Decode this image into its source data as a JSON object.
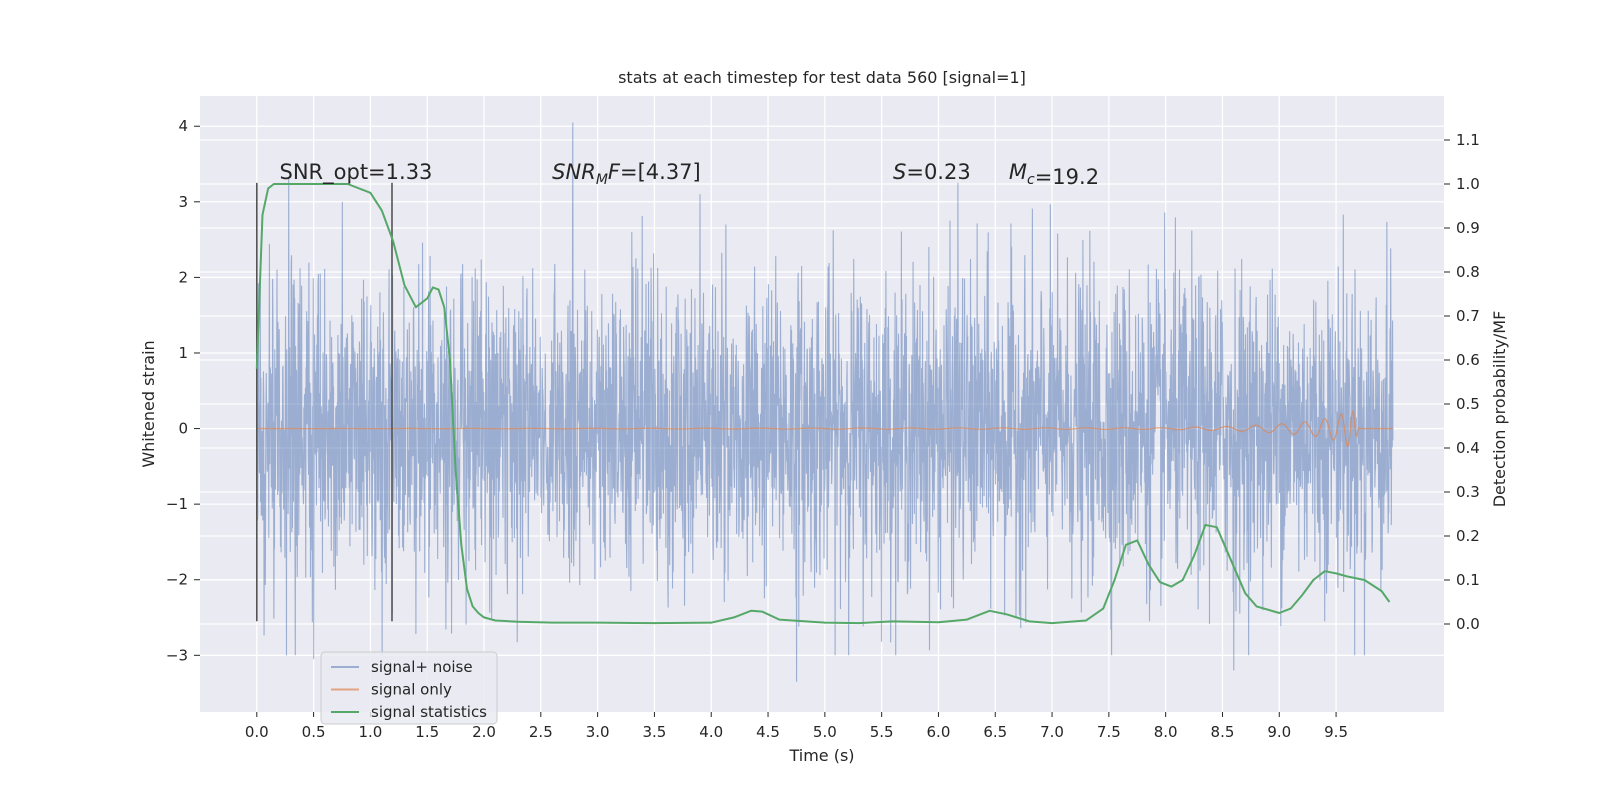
{
  "chart_data": {
    "type": "line",
    "title": "stats at each timestep for test data 560 [signal=1]",
    "xlabel": "Time (s)",
    "ylabel_left": "Whitened strain",
    "ylabel_right": "Detection probability/MF",
    "xlim": [
      -0.5,
      10.45
    ],
    "ylim_left": [
      -3.75,
      4.4
    ],
    "ylim_right": [
      -0.2,
      1.2
    ],
    "x_ticks": [
      "0.0",
      "0.5",
      "1.0",
      "1.5",
      "2.0",
      "2.5",
      "3.0",
      "3.5",
      "4.0",
      "4.5",
      "5.0",
      "5.5",
      "6.0",
      "6.5",
      "7.0",
      "7.5",
      "8.0",
      "8.5",
      "9.0",
      "9.5"
    ],
    "y_ticks_left": [
      "−3",
      "−2",
      "−1",
      "0",
      "1",
      "2",
      "3",
      "4"
    ],
    "y_ticks_right": [
      "0.0",
      "0.1",
      "0.2",
      "0.3",
      "0.4",
      "0.5",
      "0.6",
      "0.7",
      "0.8",
      "0.9",
      "1.0",
      "1.1"
    ],
    "grid": true,
    "legend_position": "lower-left",
    "colors": {
      "background": "#eaeaf2",
      "grid": "#ffffff",
      "noise": "#4c72b0",
      "signal": "#dd8452",
      "stats": "#55a868",
      "marker": "#555555"
    },
    "series": [
      {
        "name": "signal+ noise",
        "axis": "left",
        "x_range": [
          0.0,
          10.0
        ],
        "typical_band": [
          -1.5,
          1.5
        ],
        "extremes_approx": [
          -3.35,
          4.05
        ],
        "notable_peaks": [
          {
            "x": 2.78,
            "y": 4.05
          },
          {
            "x": 0.28,
            "y": 3.3
          },
          {
            "x": 6.17,
            "y": 3.25
          },
          {
            "x": 3.9,
            "y": 3.1
          },
          {
            "x": 4.75,
            "y": -3.35
          },
          {
            "x": 0.5,
            "y": -3.05
          },
          {
            "x": 8.6,
            "y": -3.2
          },
          {
            "x": 9.75,
            "y": -3.0
          }
        ]
      },
      {
        "name": "signal only",
        "axis": "left",
        "x": [
          0.0,
          8.0,
          8.6,
          9.0,
          9.3,
          9.5,
          9.62,
          9.66,
          9.7,
          10.0
        ],
        "envelope": [
          0.0,
          0.01,
          0.03,
          0.06,
          0.1,
          0.16,
          0.25,
          0.22,
          0.0,
          0.0
        ]
      },
      {
        "name": "signal statistics",
        "axis": "right",
        "x": [
          0.0,
          0.05,
          0.1,
          0.15,
          0.2,
          0.3,
          0.5,
          0.8,
          1.0,
          1.1,
          1.2,
          1.3,
          1.4,
          1.5,
          1.55,
          1.6,
          1.65,
          1.7,
          1.75,
          1.8,
          1.85,
          1.9,
          1.95,
          2.0,
          2.1,
          2.3,
          2.6,
          3.0,
          3.5,
          4.0,
          4.2,
          4.35,
          4.45,
          4.6,
          5.0,
          5.3,
          5.6,
          6.0,
          6.25,
          6.45,
          6.6,
          6.8,
          7.0,
          7.3,
          7.45,
          7.55,
          7.65,
          7.75,
          7.85,
          7.95,
          8.05,
          8.15,
          8.25,
          8.35,
          8.45,
          8.6,
          8.7,
          8.8,
          9.0,
          9.1,
          9.2,
          9.3,
          9.4,
          9.5,
          9.6,
          9.75,
          9.9,
          9.97
        ],
        "values": [
          0.58,
          0.93,
          0.99,
          1.0,
          1.0,
          1.0,
          1.0,
          1.0,
          0.98,
          0.94,
          0.87,
          0.77,
          0.72,
          0.74,
          0.765,
          0.76,
          0.72,
          0.6,
          0.35,
          0.18,
          0.08,
          0.04,
          0.025,
          0.015,
          0.008,
          0.005,
          0.003,
          0.003,
          0.002,
          0.003,
          0.015,
          0.03,
          0.028,
          0.01,
          0.003,
          0.002,
          0.006,
          0.004,
          0.01,
          0.03,
          0.022,
          0.006,
          0.002,
          0.008,
          0.035,
          0.1,
          0.18,
          0.19,
          0.135,
          0.095,
          0.085,
          0.1,
          0.155,
          0.225,
          0.22,
          0.13,
          0.07,
          0.04,
          0.025,
          0.035,
          0.065,
          0.1,
          0.12,
          0.115,
          0.108,
          0.1,
          0.075,
          0.05
        ]
      }
    ],
    "vertical_markers": [
      {
        "x": 0.0,
        "y_range": [
          -2.55,
          3.25
        ]
      },
      {
        "x": 1.19,
        "y_range": [
          -2.55,
          3.25
        ]
      }
    ],
    "annotations": [
      {
        "id": "snr-opt",
        "x": 0.2,
        "y": 3.3,
        "text": "SNR_opt=1.33"
      },
      {
        "id": "snr-mf",
        "x": 2.6,
        "y": 3.3,
        "text": "=[4.37]",
        "math_prefix": "SNR",
        "math_sub": "M",
        "math_italic_tail": "F"
      },
      {
        "id": "s-val",
        "x": 5.6,
        "y": 3.3,
        "text": "=0.23",
        "math_prefix": "S"
      },
      {
        "id": "mc-val",
        "x": 6.62,
        "y": 3.3,
        "text": "=19.2",
        "math_prefix": "M",
        "math_sub": "c"
      }
    ]
  }
}
